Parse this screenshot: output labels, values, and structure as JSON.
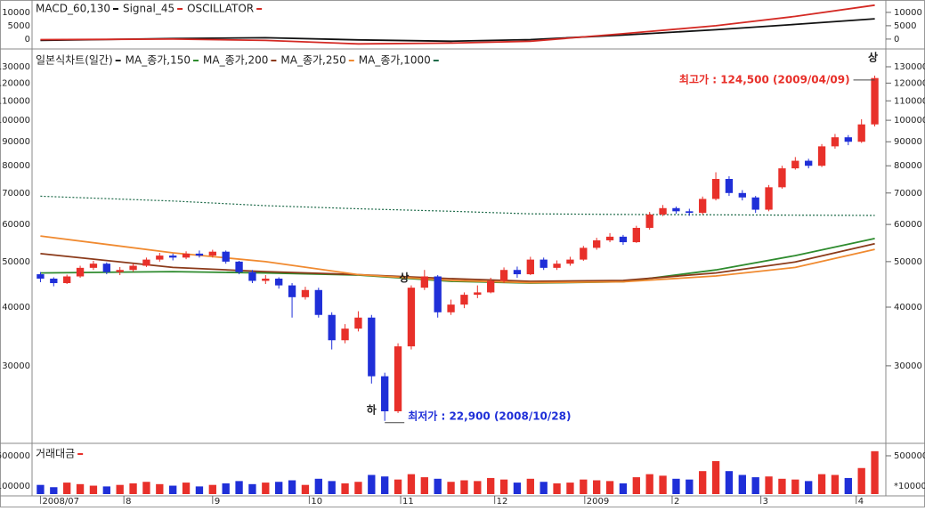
{
  "chart_data": [
    {
      "type": "line",
      "xlim": [
        -0.5,
        63.5
      ],
      "ylim": [
        -2700,
        13300
      ],
      "yticks": [
        0,
        5000,
        10000
      ],
      "line_x": [
        0,
        10,
        17,
        24,
        31,
        37,
        44,
        51,
        57,
        63
      ],
      "series": [
        {
          "name": "MACD_60,130",
          "color": "#111111",
          "values": [
            -500,
            200,
            500,
            -300,
            -800,
            -200,
            1500,
            3500,
            5500,
            7600
          ]
        },
        {
          "name": "Signal_45",
          "color": "#d42a24",
          "values": [
            -200,
            0,
            -500,
            -1800,
            -1500,
            -800,
            2000,
            5000,
            8500,
            12700
          ]
        }
      ],
      "extra_legend": {
        "name": "OSCILLATOR",
        "color": "#d42a24"
      }
    },
    {
      "type": "candlestick",
      "title": "일본식차트(일간)",
      "log": true,
      "xlim": [
        -0.5,
        63.5
      ],
      "ylim": [
        20600,
        138800
      ],
      "yticks": [
        30000,
        40000,
        50000,
        60000,
        70000,
        80000,
        90000,
        100000,
        110000,
        120000,
        130000
      ],
      "up_color": "#e8302a",
      "down_color": "#1f2fd8",
      "open": [
        47000,
        46000,
        45000,
        46500,
        48500,
        49500,
        47500,
        48000,
        49000,
        50500,
        51500,
        51000,
        52000,
        51500,
        52500,
        50000,
        47500,
        45500,
        46000,
        44500,
        42000,
        43500,
        38500,
        34000,
        36000,
        38000,
        28500,
        24000,
        33000,
        44000,
        46500,
        39000,
        40500,
        42500,
        43000,
        45500,
        48000,
        47000,
        50500,
        48500,
        49500,
        50500,
        53500,
        55500,
        56500,
        55000,
        59000,
        63000,
        65000,
        64000,
        63500,
        68000,
        75000,
        70000,
        68500,
        64500,
        72000,
        79000,
        82000,
        80000,
        88000,
        92000,
        90000,
        98000
      ],
      "high": [
        47500,
        46300,
        46900,
        49000,
        50200,
        49800,
        48700,
        49500,
        51000,
        52200,
        52000,
        52600,
        52800,
        53000,
        52800,
        50200,
        48000,
        46800,
        46300,
        45000,
        44200,
        44000,
        39000,
        36800,
        39200,
        38500,
        29000,
        33500,
        44500,
        48000,
        46800,
        41500,
        43000,
        44500,
        46200,
        48600,
        48800,
        51200,
        51000,
        50300,
        51200,
        54000,
        56200,
        57500,
        57000,
        59600,
        63800,
        66000,
        65500,
        64800,
        68800,
        77500,
        76000,
        71000,
        69000,
        72800,
        80000,
        83500,
        82800,
        89000,
        93500,
        93000,
        100500,
        124500
      ],
      "low": [
        45200,
        44300,
        44800,
        46200,
        48000,
        47000,
        46800,
        47600,
        48700,
        50000,
        50300,
        50600,
        51000,
        51000,
        49500,
        47000,
        45000,
        44800,
        43800,
        38000,
        41500,
        38000,
        32500,
        33500,
        35500,
        27500,
        22900,
        23800,
        32500,
        43500,
        38000,
        38500,
        39800,
        41800,
        42800,
        45000,
        46200,
        46800,
        48000,
        48000,
        49000,
        50200,
        53000,
        55000,
        54300,
        54800,
        58500,
        62500,
        63200,
        62600,
        63000,
        67500,
        69000,
        67500,
        63500,
        64000,
        71500,
        78500,
        79000,
        79500,
        87000,
        88500,
        89500,
        97000
      ],
      "close": [
        46000,
        45000,
        46500,
        48500,
        49500,
        47500,
        48000,
        49000,
        50500,
        51500,
        51000,
        52000,
        51500,
        52500,
        50000,
        47500,
        45500,
        46000,
        44500,
        42000,
        43500,
        38500,
        34000,
        36000,
        38000,
        28500,
        24000,
        33000,
        44000,
        46500,
        39000,
        40500,
        42500,
        43000,
        45500,
        48000,
        47000,
        50500,
        48500,
        49500,
        50500,
        53500,
        55500,
        56500,
        55000,
        59000,
        63000,
        65000,
        64000,
        63500,
        68000,
        75000,
        70000,
        68500,
        64500,
        72000,
        79000,
        82000,
        80000,
        88000,
        92000,
        90000,
        98000,
        123000
      ],
      "line_x": [
        0,
        10,
        17,
        24,
        31,
        37,
        44,
        51,
        57,
        63
      ],
      "series": [
        {
          "name": "MA_종가,150",
          "color": "#2e8b2e",
          "values": [
            47300,
            47600,
            47300,
            46800,
            45400,
            45000,
            45300,
            48000,
            51500,
            56000
          ]
        },
        {
          "name": "MA_종가,200",
          "color": "#8b3a1a",
          "values": [
            52000,
            48600,
            47600,
            46900,
            46000,
            45400,
            45600,
            47300,
            49900,
            54600
          ]
        },
        {
          "name": "MA_종가,250",
          "color": "#f08a30",
          "values": [
            56700,
            52200,
            50000,
            46900,
            45600,
            45100,
            45300,
            46600,
            48600,
            53100
          ]
        },
        {
          "name": "MA_종가,1000",
          "color": "#1f6b4a",
          "dashed": true,
          "values": [
            68900,
            67300,
            65800,
            64800,
            64000,
            63200,
            63000,
            62900,
            62800,
            62700
          ]
        }
      ],
      "annotations": [
        {
          "text": "최저가 : 22,900 (2008/10/28)",
          "color": "#1f2fd8"
        },
        {
          "text": "최고가 : 124,500 (2009/04/09)",
          "color": "#e8302a"
        },
        {
          "text": "상",
          "color": "#222222"
        },
        {
          "text": "상",
          "color": "#222222"
        },
        {
          "text": "하",
          "color": "#222222"
        }
      ]
    },
    {
      "type": "bar",
      "title": "거래대금",
      "title_color": "#e8302a",
      "xlim": [
        -0.5,
        63.5
      ],
      "ylim": [
        0,
        616000
      ],
      "yticks": [
        500000
      ],
      "unit_label": "*100000",
      "xticks": [
        {
          "value": 0,
          "label": "2008/07"
        },
        {
          "value": 6.3,
          "label": "8"
        },
        {
          "value": 13,
          "label": "9"
        },
        {
          "value": 20.3,
          "label": "10"
        },
        {
          "value": 27.2,
          "label": "11"
        },
        {
          "value": 34.3,
          "label": "12"
        },
        {
          "value": 41.1,
          "label": "2009"
        },
        {
          "value": 47.7,
          "label": "2"
        },
        {
          "value": 54.4,
          "label": "3"
        },
        {
          "value": 61.6,
          "label": "4"
        }
      ],
      "values": [
        120000,
        90000,
        150000,
        130000,
        110000,
        100000,
        120000,
        140000,
        160000,
        130000,
        110000,
        150000,
        100000,
        120000,
        140000,
        170000,
        130000,
        150000,
        160000,
        180000,
        120000,
        200000,
        170000,
        140000,
        160000,
        250000,
        230000,
        190000,
        260000,
        220000,
        200000,
        160000,
        180000,
        170000,
        210000,
        190000,
        150000,
        200000,
        160000,
        140000,
        150000,
        190000,
        180000,
        170000,
        140000,
        220000,
        260000,
        240000,
        200000,
        190000,
        300000,
        430000,
        300000,
        250000,
        220000,
        230000,
        200000,
        190000,
        170000,
        260000,
        250000,
        210000,
        340000,
        560000
      ]
    }
  ]
}
